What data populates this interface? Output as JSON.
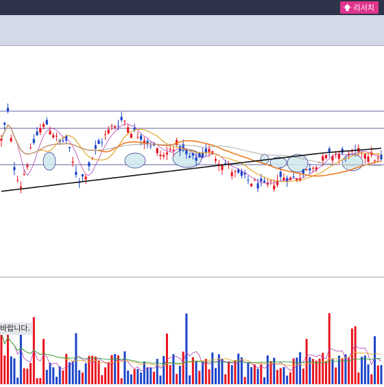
{
  "header": {
    "research_label": "리서치",
    "research_icon": "lightbulb-icon",
    "accent_color": "#e0348e",
    "bar_color": "#2d3348"
  },
  "toolbar": {
    "background": "#d4d9e8"
  },
  "chart": {
    "notice_text": "바랍니다.",
    "colors": {
      "up": "#e8141e",
      "down": "#1a44c8",
      "ma_orange": "#f07a1e",
      "ma_black": "#111111",
      "ma_gray": "#a8a8a8",
      "ma_gold": "#e3a52a",
      "ma_purple": "#b040b0",
      "highlight": "#cfe8ec",
      "hline": "#2a2a88"
    }
  },
  "chart_data": {
    "type": "candlestick",
    "panels": [
      "price",
      "volume"
    ],
    "candle_count": 118,
    "close_trend": [
      110,
      128,
      92,
      80,
      95,
      108,
      117,
      121,
      115,
      108,
      111,
      96,
      83,
      87,
      98,
      106,
      112,
      118,
      121,
      124,
      117,
      114,
      112,
      108,
      104,
      99,
      102,
      108,
      104,
      98,
      97,
      99,
      104,
      100,
      96,
      93,
      89,
      86,
      84,
      82,
      80,
      79,
      81,
      84,
      86,
      84,
      86,
      88,
      92,
      95,
      97,
      100,
      101,
      100,
      99,
      101,
      103,
      101,
      98,
      96
    ],
    "highlight_count": 10,
    "horizontal_lines": 3,
    "moving_averages": [
      "orange",
      "black",
      "gray",
      "gold",
      "purple"
    ]
  }
}
